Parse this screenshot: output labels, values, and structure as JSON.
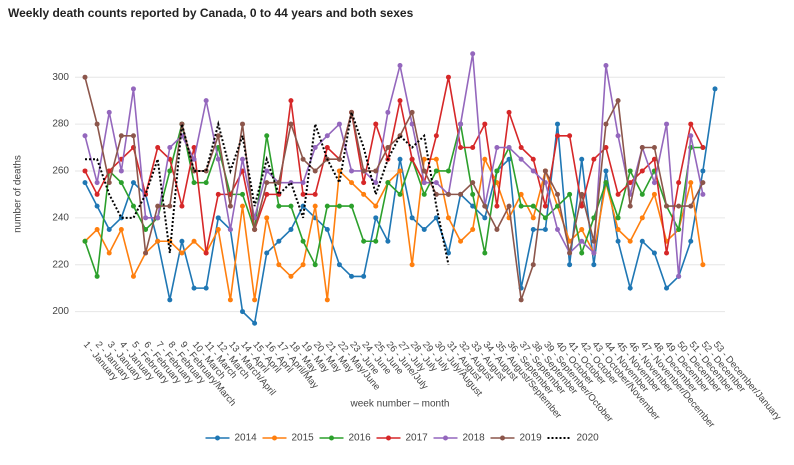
{
  "chart_data": {
    "type": "line",
    "title": "Weekly death counts reported by Canada, 0 to 44 years and both sexes",
    "xlabel": "week number – month",
    "ylabel": "number of deaths",
    "categories": [
      "1 - January",
      "2 - January",
      "3 - January",
      "4 - January",
      "5 - February",
      "6 - February",
      "7 - February",
      "8 - February",
      "9 - February/March",
      "10 - March",
      "11 - March",
      "12 - March",
      "13 - March/April",
      "14 - April",
      "15 - April",
      "16 - April",
      "17 - April/May",
      "18 - May",
      "19 - May",
      "20 - May",
      "21 - May",
      "22 - May/June",
      "23 - June",
      "24 - June",
      "25 - June",
      "26 - June/July",
      "27 - July",
      "28 - July",
      "29 - July",
      "30 - July/August",
      "31 - August",
      "32 - August",
      "33 - August",
      "34 - August",
      "35 - August/September",
      "36 - September",
      "37 - September",
      "38 - September",
      "39 - September/October",
      "40 - October",
      "41 - October",
      "42 - October",
      "43 - October/November",
      "44 - November",
      "45 - November",
      "46 - November",
      "47 - November/December",
      "48 - December",
      "49 - December",
      "50 - December",
      "51 - December",
      "52 - December",
      "53 - December/January"
    ],
    "ylim": [
      190,
      318
    ],
    "yticks": [
      200,
      220,
      240,
      260,
      280,
      300
    ],
    "grid": true,
    "legend": "bottom",
    "series": [
      {
        "name": "2014",
        "color": "#1f77b4",
        "markers": true,
        "values": [
          255,
          245,
          235,
          240,
          255,
          250,
          230,
          205,
          230,
          210,
          210,
          240,
          235,
          200,
          195,
          225,
          230,
          235,
          245,
          240,
          235,
          220,
          215,
          215,
          240,
          230,
          265,
          240,
          235,
          240,
          225,
          250,
          245,
          240,
          260,
          265,
          210,
          235,
          235,
          280,
          220,
          265,
          220,
          260,
          230,
          210,
          230,
          225,
          210,
          215,
          230,
          260,
          295
        ]
      },
      {
        "name": "2015",
        "color": "#ff7f0e",
        "markers": true,
        "values": [
          230,
          235,
          225,
          235,
          215,
          225,
          230,
          230,
          225,
          230,
          225,
          235,
          205,
          245,
          205,
          240,
          220,
          215,
          220,
          245,
          205,
          260,
          255,
          250,
          245,
          255,
          260,
          220,
          265,
          265,
          240,
          230,
          235,
          265,
          255,
          240,
          250,
          240,
          260,
          245,
          230,
          235,
          225,
          255,
          235,
          230,
          240,
          250,
          230,
          235,
          255,
          220,
          null
        ]
      },
      {
        "name": "2016",
        "color": "#2ca02c",
        "markers": true,
        "values": [
          230,
          215,
          260,
          255,
          245,
          235,
          240,
          260,
          280,
          255,
          255,
          270,
          250,
          250,
          235,
          275,
          245,
          245,
          230,
          220,
          245,
          245,
          245,
          230,
          230,
          255,
          250,
          265,
          250,
          260,
          260,
          280,
          250,
          225,
          260,
          270,
          245,
          245,
          240,
          245,
          250,
          225,
          240,
          255,
          240,
          260,
          250,
          260,
          245,
          235,
          270,
          270,
          null
        ]
      },
      {
        "name": "2017",
        "color": "#d62728",
        "markers": true,
        "values": [
          260,
          250,
          260,
          265,
          270,
          250,
          270,
          265,
          245,
          270,
          225,
          250,
          250,
          260,
          235,
          250,
          250,
          290,
          250,
          250,
          270,
          265,
          285,
          255,
          280,
          265,
          290,
          265,
          255,
          275,
          300,
          270,
          270,
          280,
          245,
          285,
          270,
          265,
          245,
          275,
          275,
          245,
          265,
          270,
          250,
          255,
          260,
          265,
          225,
          255,
          280,
          270,
          null
        ]
      },
      {
        "name": "2018",
        "color": "#9467bd",
        "markers": true,
        "values": [
          275,
          255,
          285,
          260,
          295,
          240,
          240,
          270,
          275,
          265,
          290,
          265,
          235,
          265,
          240,
          260,
          255,
          255,
          255,
          270,
          275,
          280,
          260,
          260,
          255,
          285,
          305,
          280,
          255,
          255,
          250,
          280,
          310,
          245,
          270,
          270,
          265,
          260,
          255,
          235,
          225,
          230,
          225,
          305,
          275,
          250,
          270,
          255,
          280,
          215,
          275,
          250,
          null
        ]
      },
      {
        "name": "2019",
        "color": "#8c564b",
        "markers": true,
        "values": [
          300,
          280,
          255,
          275,
          275,
          225,
          245,
          245,
          280,
          260,
          260,
          275,
          245,
          280,
          235,
          255,
          255,
          280,
          265,
          260,
          265,
          265,
          285,
          260,
          260,
          270,
          275,
          285,
          260,
          250,
          250,
          250,
          255,
          245,
          235,
          245,
          205,
          220,
          260,
          250,
          225,
          250,
          230,
          280,
          290,
          245,
          270,
          270,
          245,
          245,
          245,
          255,
          null
        ]
      },
      {
        "name": "2020",
        "color": "#000000",
        "markers": false,
        "dash": "dot",
        "values": [
          265,
          265,
          250,
          240,
          240,
          250,
          265,
          225,
          280,
          260,
          260,
          280,
          260,
          275,
          245,
          265,
          250,
          255,
          240,
          280,
          265,
          255,
          285,
          270,
          250,
          265,
          275,
          270,
          275,
          245,
          220,
          null,
          null,
          null,
          null,
          null,
          null,
          null,
          null,
          null,
          null,
          null,
          null,
          null,
          null,
          null,
          null,
          null,
          null,
          null,
          null,
          null,
          null
        ]
      }
    ]
  }
}
